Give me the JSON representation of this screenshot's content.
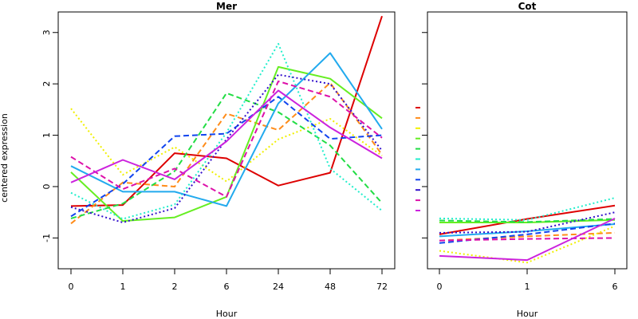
{
  "chart_data": [
    {
      "type": "line",
      "title": "Mer",
      "xlabel": "Hour",
      "ylabel": "centered expression",
      "categories": [
        "0",
        "1",
        "2",
        "6",
        "24",
        "48",
        "72"
      ],
      "ylim": [
        -1.6,
        3.4
      ],
      "yticks": [
        -1,
        0,
        1,
        2,
        3
      ],
      "series": [
        {
          "color": "#dd0000",
          "dash": "solid",
          "values": [
            -0.38,
            -0.36,
            0.65,
            0.55,
            0.02,
            0.27,
            3.32
          ]
        },
        {
          "color": "#ff8c1a",
          "dash": "dashed",
          "values": [
            -0.72,
            0.08,
            0.0,
            1.42,
            1.1,
            2.02,
            0.62
          ]
        },
        {
          "color": "#f0f000",
          "dash": "dotted",
          "values": [
            1.52,
            0.23,
            0.77,
            0.1,
            0.92,
            1.32,
            0.6
          ]
        },
        {
          "color": "#66ee22",
          "dash": "solid",
          "values": [
            0.28,
            -0.67,
            -0.6,
            -0.2,
            2.33,
            2.1,
            1.33
          ]
        },
        {
          "color": "#22dd44",
          "dash": "dashed",
          "values": [
            -0.62,
            -0.33,
            0.3,
            1.82,
            1.45,
            0.8,
            -0.32
          ]
        },
        {
          "color": "#22eecc",
          "dash": "dotted",
          "values": [
            -0.12,
            -0.63,
            -0.35,
            1.05,
            2.78,
            0.35,
            -0.47
          ]
        },
        {
          "color": "#22aaee",
          "dash": "solid",
          "values": [
            0.4,
            -0.1,
            -0.1,
            -0.38,
            1.62,
            2.6,
            1.12
          ]
        },
        {
          "color": "#1144ee",
          "dash": "dashed",
          "values": [
            -0.58,
            0.05,
            0.98,
            1.03,
            1.75,
            0.93,
            1.0
          ]
        },
        {
          "color": "#3311cc",
          "dash": "dotted",
          "values": [
            -0.4,
            -0.7,
            -0.42,
            0.92,
            2.18,
            2.0,
            0.7
          ]
        },
        {
          "color": "#dd11aa",
          "dash": "dashed",
          "values": [
            0.58,
            -0.05,
            0.35,
            -0.2,
            2.05,
            1.75,
            0.95
          ]
        },
        {
          "color": "#cc22dd",
          "dash": "solid",
          "values": [
            0.08,
            0.52,
            0.14,
            0.88,
            1.87,
            1.15,
            0.55
          ]
        }
      ]
    },
    {
      "type": "line",
      "title": "Cot",
      "xlabel": "Hour",
      "ylabel": "",
      "categories": [
        "0",
        "1",
        "6"
      ],
      "ylim": [
        -1.6,
        3.4
      ],
      "yticks": [
        -1,
        0,
        1,
        2,
        3
      ],
      "series": [
        {
          "color": "#dd0000",
          "dash": "solid",
          "values": [
            -0.93,
            -0.63,
            -0.37
          ]
        },
        {
          "color": "#ff8c1a",
          "dash": "dashed",
          "values": [
            -1.05,
            -0.97,
            -0.9
          ]
        },
        {
          "color": "#f0f000",
          "dash": "dotted",
          "values": [
            -1.25,
            -1.48,
            -0.77
          ]
        },
        {
          "color": "#66ee22",
          "dash": "solid",
          "values": [
            -0.7,
            -0.7,
            -0.65
          ]
        },
        {
          "color": "#22dd44",
          "dash": "dashed",
          "values": [
            -0.66,
            -0.69,
            -0.63
          ]
        },
        {
          "color": "#22eecc",
          "dash": "dotted",
          "values": [
            -0.62,
            -0.65,
            -0.22
          ]
        },
        {
          "color": "#22aaee",
          "dash": "solid",
          "values": [
            -0.97,
            -0.87,
            -0.73
          ]
        },
        {
          "color": "#1144ee",
          "dash": "dashed",
          "values": [
            -1.1,
            -0.93,
            -0.72
          ]
        },
        {
          "color": "#3311cc",
          "dash": "dotted",
          "values": [
            -0.9,
            -0.88,
            -0.5
          ]
        },
        {
          "color": "#dd11aa",
          "dash": "dashed",
          "values": [
            -1.05,
            -1.02,
            -1.0
          ]
        },
        {
          "color": "#cc22dd",
          "dash": "solid",
          "values": [
            -1.35,
            -1.43,
            -0.62
          ]
        }
      ]
    }
  ]
}
